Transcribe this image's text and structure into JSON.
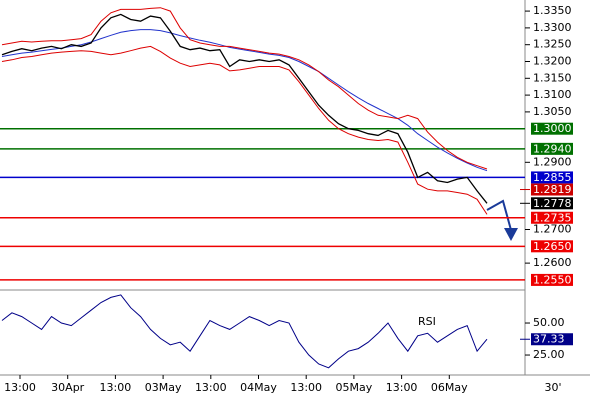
{
  "chart_data": {
    "type": "line",
    "ylim": [
      1.252,
      1.3383
    ],
    "yticks": [
      {
        "value": 1.335,
        "label": "1.3350"
      },
      {
        "value": 1.33,
        "label": "1.3300"
      },
      {
        "value": 1.325,
        "label": "1.3250"
      },
      {
        "value": 1.32,
        "label": "1.3200"
      },
      {
        "value": 1.315,
        "label": "1.3150"
      },
      {
        "value": 1.31,
        "label": "1.3100"
      },
      {
        "value": 1.305,
        "label": "1.3050"
      },
      {
        "value": 1.29,
        "label": "1.2900"
      },
      {
        "value": 1.27,
        "label": "1.2700"
      },
      {
        "value": 1.26,
        "label": "1.2600"
      }
    ],
    "levels": [
      {
        "value": 1.3,
        "label": "1.3000",
        "color": "#007000",
        "line": true
      },
      {
        "value": 1.294,
        "label": "1.2940",
        "color": "#007000",
        "line": true
      },
      {
        "value": 1.2855,
        "label": "1.2855",
        "color": "#0000cc",
        "line": true
      },
      {
        "value": 1.2819,
        "label": "1.2819",
        "color": "#cc0000",
        "line": false
      },
      {
        "value": 1.2778,
        "label": "1.2778",
        "color": "#000000",
        "line": false
      },
      {
        "value": 1.2735,
        "label": "1.2735",
        "color": "#ee0000",
        "line": true
      },
      {
        "value": 1.265,
        "label": "1.2650",
        "color": "#ee0000",
        "line": true
      },
      {
        "value": 1.255,
        "label": "1.2550",
        "color": "#ee0000",
        "line": true
      }
    ],
    "series": [
      {
        "color": "#000000",
        "values": [
          1.322,
          1.323,
          1.3238,
          1.3232,
          1.324,
          1.3245,
          1.3238,
          1.325,
          1.3245,
          1.3255,
          1.33,
          1.333,
          1.334,
          1.3325,
          1.332,
          1.3335,
          1.333,
          1.329,
          1.3245,
          1.3235,
          1.324,
          1.3232,
          1.3235,
          1.3185,
          1.3205,
          1.32,
          1.3205,
          1.32,
          1.3205,
          1.319,
          1.315,
          1.311,
          1.307,
          1.304,
          1.3015,
          1.3,
          1.2995,
          1.2985,
          1.298,
          1.2995,
          1.2985,
          1.293,
          1.2855,
          1.287,
          1.2845,
          1.284,
          1.285,
          1.2855,
          1.2815,
          1.2778
        ]
      },
      {
        "color": "#dd0000",
        "values": [
          1.325,
          1.3255,
          1.326,
          1.3258,
          1.326,
          1.3262,
          1.3262,
          1.3265,
          1.3268,
          1.328,
          1.332,
          1.3345,
          1.3355,
          1.3355,
          1.3355,
          1.3358,
          1.336,
          1.335,
          1.33,
          1.3265,
          1.3255,
          1.325,
          1.3245,
          1.3245,
          1.324,
          1.3235,
          1.323,
          1.3225,
          1.3222,
          1.3215,
          1.3205,
          1.319,
          1.317,
          1.3145,
          1.3125,
          1.31,
          1.3075,
          1.3055,
          1.304,
          1.3035,
          1.303,
          1.304,
          1.303,
          1.299,
          1.296,
          1.2935,
          1.2915,
          1.29,
          1.289,
          1.288
        ]
      },
      {
        "color": "#dd0000",
        "values": [
          1.32,
          1.3205,
          1.3212,
          1.3215,
          1.322,
          1.3225,
          1.3228,
          1.323,
          1.3232,
          1.323,
          1.3225,
          1.322,
          1.3225,
          1.3232,
          1.324,
          1.3245,
          1.323,
          1.321,
          1.3195,
          1.3185,
          1.319,
          1.3195,
          1.319,
          1.3172,
          1.3175,
          1.318,
          1.3185,
          1.3185,
          1.3185,
          1.3175,
          1.314,
          1.31,
          1.306,
          1.3025,
          1.3,
          1.2985,
          1.2975,
          1.2968,
          1.2965,
          1.2968,
          1.296,
          1.29,
          1.2835,
          1.282,
          1.2815,
          1.2815,
          1.281,
          1.2805,
          1.279,
          1.2745
        ]
      },
      {
        "color": "#2233cc",
        "values": [
          1.3215,
          1.322,
          1.3225,
          1.3228,
          1.3232,
          1.3236,
          1.324,
          1.3245,
          1.325,
          1.3258,
          1.3268,
          1.3278,
          1.3287,
          1.3292,
          1.3295,
          1.3295,
          1.3292,
          1.3285,
          1.3277,
          1.327,
          1.3263,
          1.3257,
          1.325,
          1.3242,
          1.3237,
          1.3232,
          1.3227,
          1.3222,
          1.3218,
          1.3212,
          1.32,
          1.3185,
          1.317,
          1.315,
          1.313,
          1.311,
          1.3092,
          1.3075,
          1.306,
          1.3045,
          1.303,
          1.301,
          1.2985,
          1.2965,
          1.2945,
          1.2928,
          1.2912,
          1.2898,
          1.2885,
          1.2875
        ]
      }
    ],
    "rsi": {
      "label": "RSI",
      "color": "#000088",
      "ylim": [
        9.4,
        75.8
      ],
      "yticks": [
        {
          "value": 50,
          "label": "50.00"
        },
        {
          "value": 25,
          "label": "25.00"
        }
      ],
      "values": [
        52,
        58,
        55,
        50,
        45,
        55,
        50,
        48,
        54,
        60,
        66,
        70,
        72,
        62,
        55,
        45,
        38,
        33,
        35,
        28,
        40,
        52,
        48,
        45,
        50,
        55,
        52,
        48,
        52,
        50,
        35,
        25,
        18,
        15,
        22,
        28,
        30,
        35,
        42,
        50,
        38,
        28,
        40,
        42,
        35,
        40,
        45,
        48,
        28,
        37.33
      ],
      "value_labels": {
        "49": "37.33"
      }
    },
    "x_labels": [
      "13:00",
      "30Apr",
      "13:00",
      "03May",
      "13:00",
      "04May",
      "13:00",
      "05May",
      "13:00",
      "06May"
    ],
    "timeframe": "30'"
  }
}
